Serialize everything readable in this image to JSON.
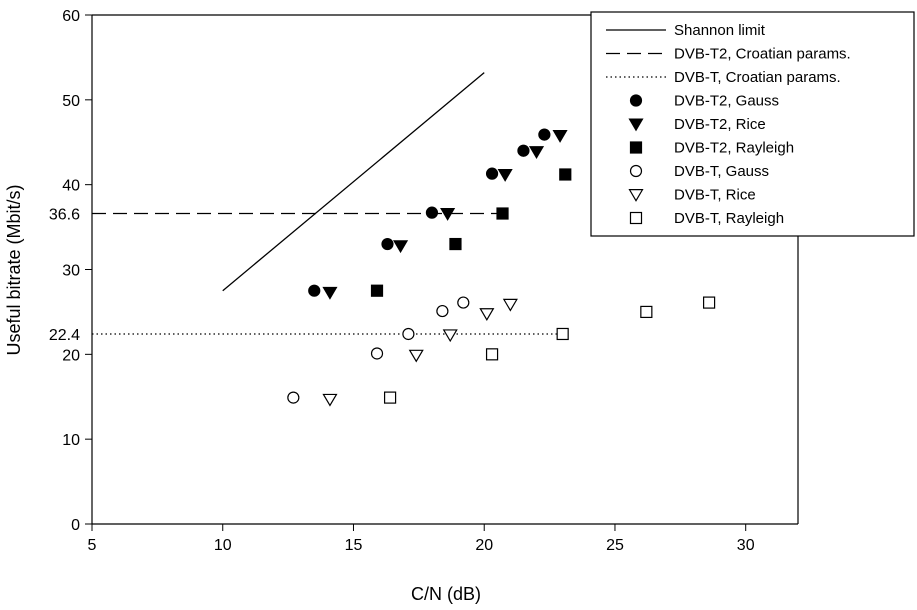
{
  "chart_data": {
    "type": "scatter",
    "xlabel": "C/N (dB)",
    "ylabel": "Useful bitrate (Mbit/s)",
    "xlim": [
      5,
      32
    ],
    "ylim": [
      0,
      60
    ],
    "x_ticks": [
      5,
      10,
      15,
      20,
      25,
      30
    ],
    "y_ticks": [
      0,
      10,
      20,
      30,
      40,
      50,
      60
    ],
    "y_ref_labels": [
      "22.4",
      "36.6"
    ],
    "grid": false,
    "legend_position": "top-right",
    "series": [
      {
        "name": "Shannon limit",
        "style": "solid-line",
        "x": [
          10,
          20
        ],
        "y": [
          27.5,
          53.2
        ]
      },
      {
        "name": "DVB-T2, Croatian params.",
        "style": "dashed-line",
        "x": [
          5,
          20.7
        ],
        "y": [
          36.6,
          36.6
        ]
      },
      {
        "name": "DVB-T, Croatian params.",
        "style": "dotted-line",
        "x": [
          5,
          23
        ],
        "y": [
          22.4,
          22.4
        ]
      },
      {
        "name": "DVB-T2, Gauss",
        "marker": "circle-filled",
        "x": [
          13.5,
          16.3,
          18.0,
          20.3,
          21.5,
          22.3
        ],
        "y": [
          27.5,
          33.0,
          36.7,
          41.3,
          44.0,
          45.9
        ]
      },
      {
        "name": "DVB-T2, Rice",
        "marker": "triangle-filled",
        "x": [
          14.1,
          16.8,
          18.6,
          20.8,
          22.0,
          22.9
        ],
        "y": [
          27.3,
          32.8,
          36.6,
          41.2,
          43.9,
          45.8
        ]
      },
      {
        "name": "DVB-T2, Rayleigh",
        "marker": "square-filled",
        "x": [
          15.9,
          18.9,
          20.7,
          23.1
        ],
        "y": [
          27.5,
          33.0,
          36.6,
          41.2
        ]
      },
      {
        "name": "DVB-T, Gauss",
        "marker": "circle-open",
        "x": [
          12.7,
          15.9,
          17.1,
          18.4,
          19.2
        ],
        "y": [
          14.9,
          20.1,
          22.4,
          25.1,
          26.1
        ]
      },
      {
        "name": "DVB-T, Rice",
        "marker": "triangle-open",
        "x": [
          14.1,
          17.4,
          18.7,
          20.1,
          21.0
        ],
        "y": [
          14.7,
          19.9,
          22.3,
          24.8,
          25.9
        ]
      },
      {
        "name": "DVB-T, Rayleigh",
        "marker": "square-open",
        "x": [
          16.4,
          20.3,
          23.0,
          26.2,
          28.6
        ],
        "y": [
          14.9,
          20.0,
          22.4,
          25.0,
          26.1
        ]
      }
    ]
  }
}
